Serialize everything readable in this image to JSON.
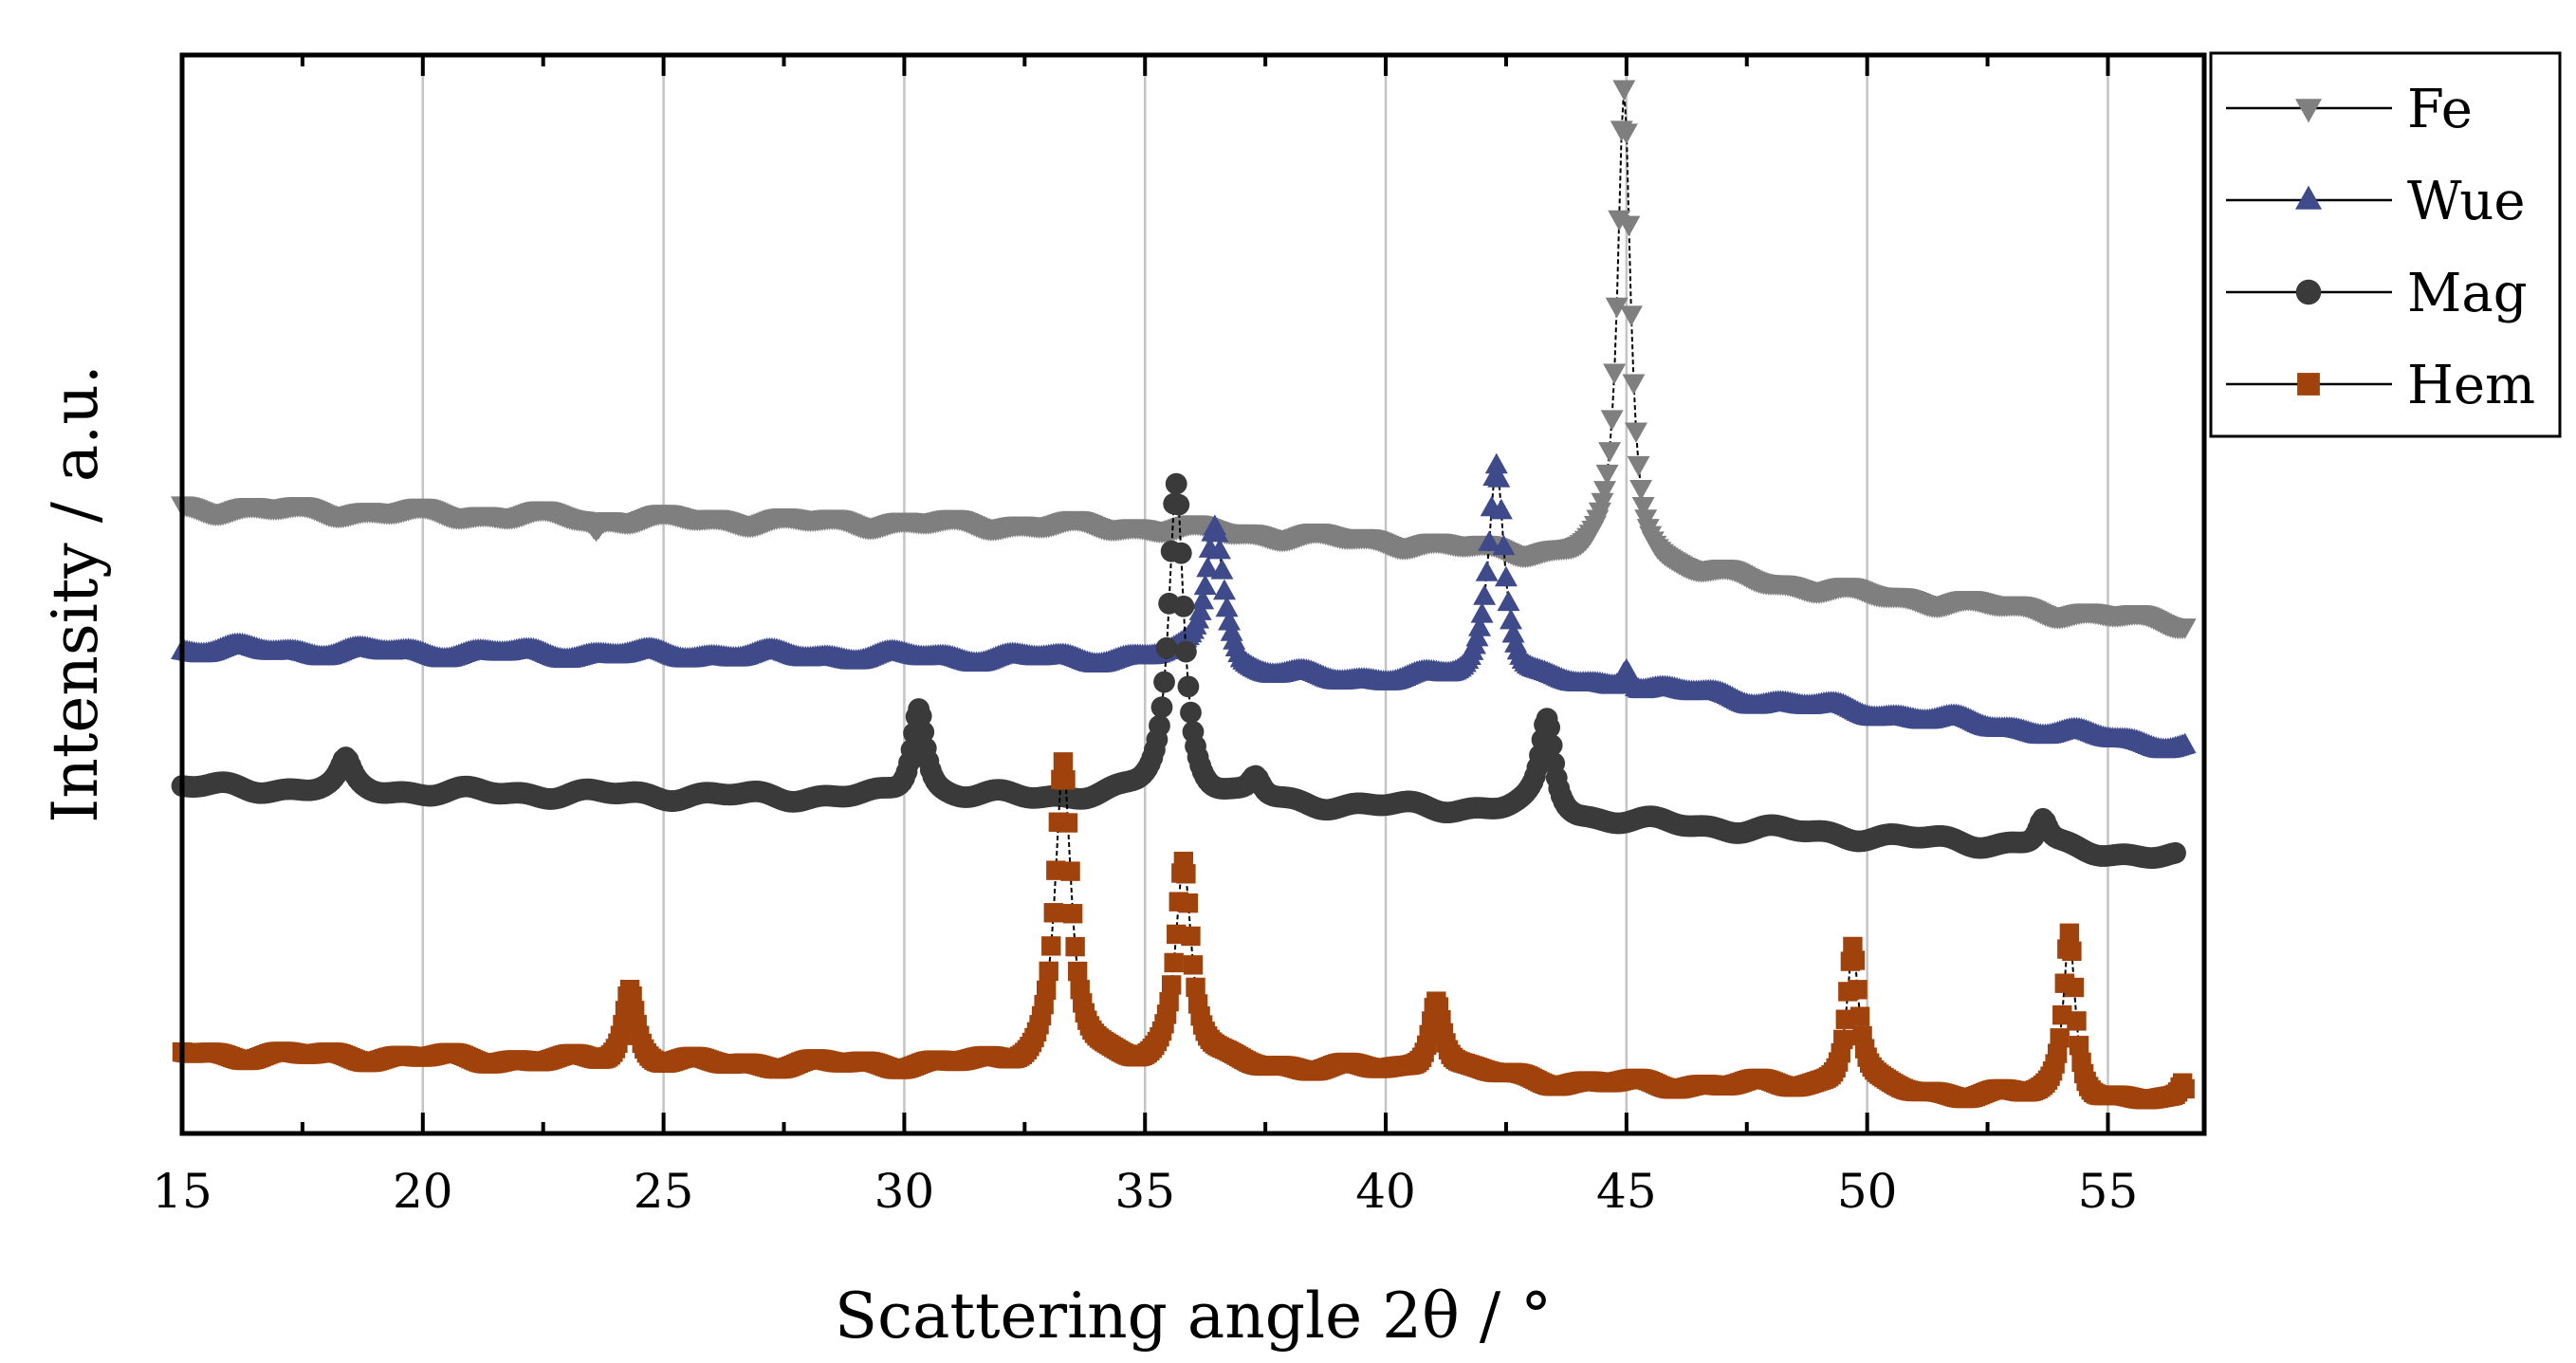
{
  "chart_data": {
    "type": "line",
    "title": "",
    "xlabel": "Scattering angle 2θ / °",
    "ylabel": "Intensity / a.u.",
    "xlim": [
      15,
      57
    ],
    "ylim": [
      0,
      100
    ],
    "xticks": [
      "15",
      "20",
      "25",
      "30",
      "35",
      "40",
      "45",
      "50",
      "55"
    ],
    "grid": "vertical",
    "legend_position": "top-right, outside plot",
    "series": [
      {
        "name": "Fe",
        "marker": "triangle-down",
        "color": "#7f7f7f",
        "baseline": [
          [
            15,
            59.5
          ],
          [
            25,
            58.4
          ],
          [
            35,
            57.6
          ],
          [
            40,
            56.2
          ],
          [
            44.5,
            54.4
          ],
          [
            45.6,
            53.6
          ],
          [
            50,
            51.0
          ],
          [
            56.6,
            48.3
          ]
        ],
        "peaks": [
          {
            "x": 23.6,
            "h": 1.2,
            "w": 0.1,
            "neg": true
          },
          {
            "x": 44.95,
            "h": 46.0,
            "w": 0.16
          }
        ]
      },
      {
        "name": "Wue",
        "marker": "triangle-up",
        "color": "#3f4a8a",
        "baseline": [
          [
            15,
            45.6
          ],
          [
            20,
            45.3
          ],
          [
            30,
            44.9
          ],
          [
            36.6,
            44.5
          ],
          [
            37,
            42.9
          ],
          [
            42,
            42.4
          ],
          [
            46,
            41.5
          ],
          [
            56.6,
            36.2
          ]
        ],
        "peaks": [
          {
            "x": 36.45,
            "h": 13.5,
            "w": 0.22
          },
          {
            "x": 42.3,
            "h": 21.5,
            "w": 0.2
          },
          {
            "x": 45.0,
            "h": 2.3,
            "w": 0.12
          }
        ]
      },
      {
        "name": "Mag",
        "marker": "circle",
        "color": "#3a3a3a",
        "baseline": [
          [
            15,
            32.3
          ],
          [
            20,
            31.8
          ],
          [
            30,
            31.2
          ],
          [
            35,
            31.3
          ],
          [
            38,
            30.6
          ],
          [
            43,
            30.0
          ],
          [
            44,
            29.2
          ],
          [
            53,
            26.7
          ],
          [
            56.4,
            25.4
          ]
        ],
        "peaks": [
          {
            "x": 18.4,
            "h": 2.6,
            "w": 0.16
          },
          {
            "x": 30.3,
            "h": 9.0,
            "w": 0.17
          },
          {
            "x": 35.65,
            "h": 30.5,
            "w": 0.19
          },
          {
            "x": 37.3,
            "h": 2.0,
            "w": 0.16
          },
          {
            "x": 43.35,
            "h": 9.0,
            "w": 0.17
          },
          {
            "x": 53.65,
            "h": 2.6,
            "w": 0.14
          }
        ]
      },
      {
        "name": "Hem",
        "marker": "square",
        "color": "#a0420b",
        "baseline": [
          [
            15,
            6.4
          ],
          [
            20,
            6.0
          ],
          [
            25,
            5.4
          ],
          [
            30,
            5.3
          ],
          [
            33,
            5.2
          ],
          [
            38,
            5.0
          ],
          [
            42,
            4.4
          ],
          [
            44,
            3.5
          ],
          [
            49,
            3.2
          ],
          [
            50.5,
            2.7
          ],
          [
            53,
            2.2
          ],
          [
            54.5,
            1.7
          ],
          [
            56.6,
            1.6
          ]
        ],
        "peaks": [
          {
            "x": 24.3,
            "h": 7.2,
            "w": 0.16
          },
          {
            "x": 33.3,
            "h": 29.4,
            "w": 0.2
          },
          {
            "x": 35.8,
            "h": 20.0,
            "w": 0.2
          },
          {
            "x": 41.05,
            "h": 7.4,
            "w": 0.17
          },
          {
            "x": 49.7,
            "h": 14.0,
            "w": 0.15
          },
          {
            "x": 54.2,
            "h": 16.5,
            "w": 0.15
          },
          {
            "x": 56.55,
            "h": 1.7,
            "w": 0.08
          }
        ]
      }
    ]
  }
}
